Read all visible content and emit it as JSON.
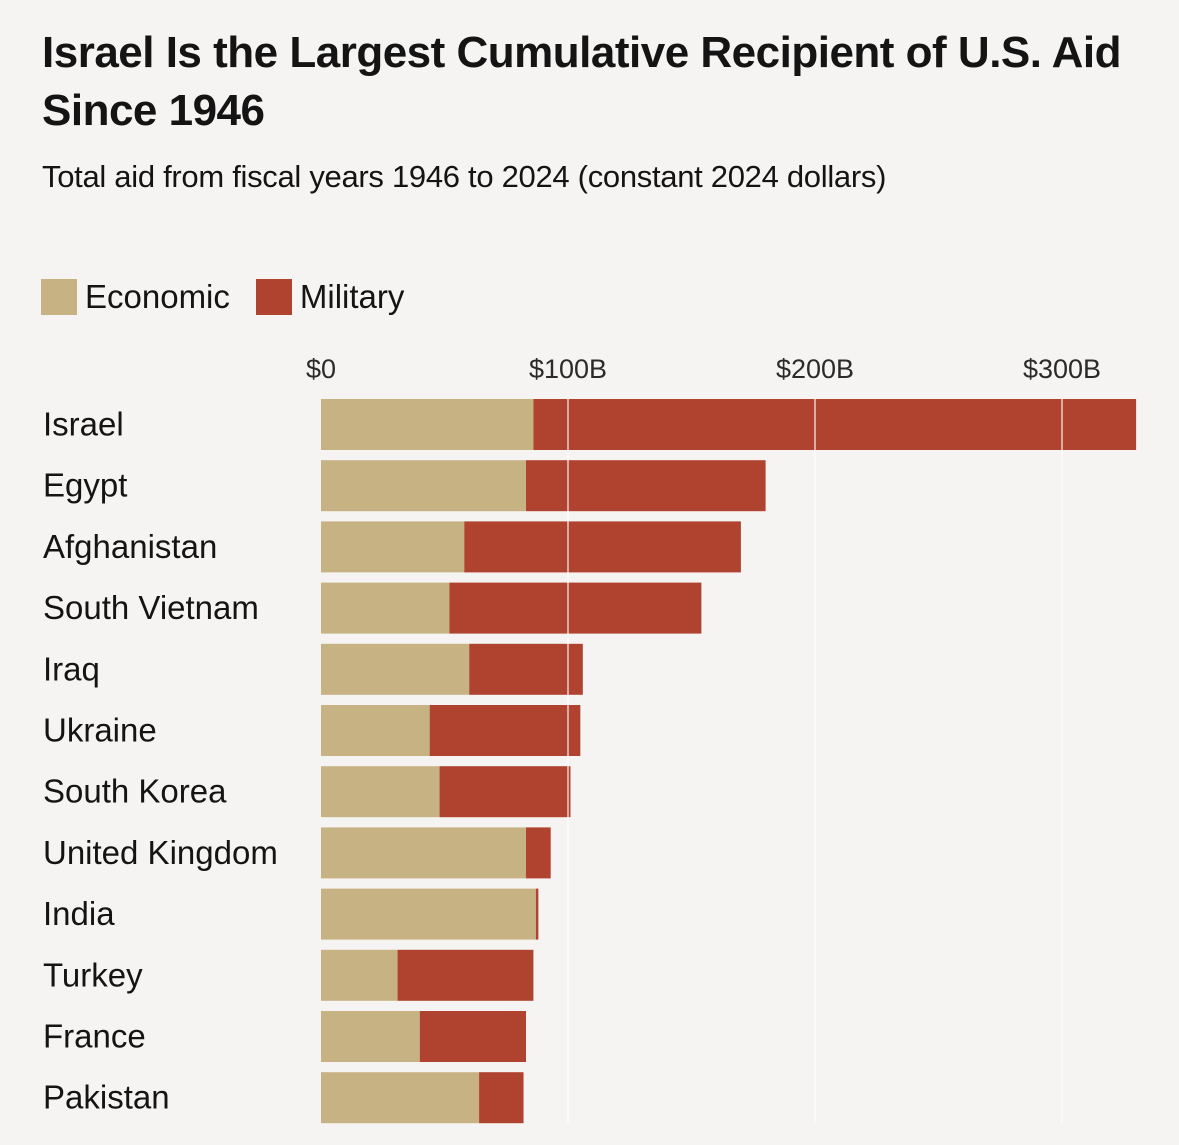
{
  "colors": {
    "economic": "#c7b283",
    "military": "#b04330",
    "gridline": "#ffffff",
    "background": "#f6f4f2"
  },
  "chart_data": {
    "type": "bar",
    "orientation": "horizontal",
    "stacked": true,
    "title": "Israel Is the Largest Cumulative Recipient of U.S. Aid Since 1946",
    "subtitle": "Total aid from fiscal years 1946 to 2024 (constant 2024 dollars)",
    "xlabel": "",
    "ylabel": "",
    "xlim": [
      0,
      330
    ],
    "unit": "billions of 2024 dollars",
    "xticks": [
      0,
      100,
      200,
      300
    ],
    "xtick_labels": [
      "$0",
      "$100B",
      "$200B",
      "$300B"
    ],
    "grid": true,
    "legend_position": "top-left",
    "categories": [
      "Israel",
      "Egypt",
      "Afghanistan",
      "South Vietnam",
      "Iraq",
      "Ukraine",
      "South Korea",
      "United Kingdom",
      "India",
      "Turkey",
      "France",
      "Pakistan"
    ],
    "series": [
      {
        "name": "Economic",
        "color": "#c7b283",
        "values": [
          86,
          83,
          58,
          52,
          60,
          44,
          48,
          83,
          87,
          31,
          40,
          64
        ]
      },
      {
        "name": "Military",
        "color": "#b04330",
        "values": [
          244,
          97,
          112,
          102,
          46,
          61,
          53,
          10,
          1,
          55,
          43,
          18
        ]
      }
    ]
  }
}
